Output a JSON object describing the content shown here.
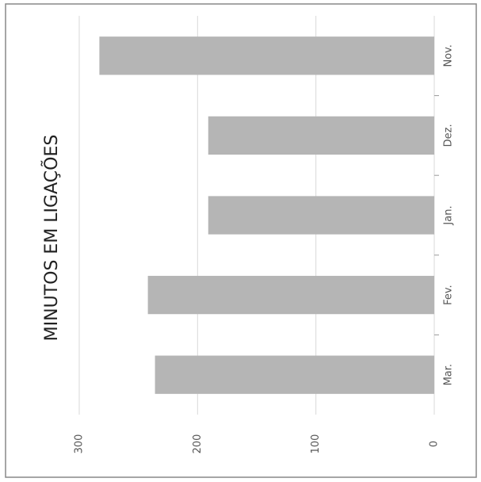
{
  "chart_data": {
    "type": "bar",
    "title": "MINUTOS EM LIGAÇÕES",
    "categories": [
      "Nov.",
      "Dez.",
      "Jan.",
      "Fev.",
      "Mar."
    ],
    "values": [
      283,
      191,
      191,
      242,
      236
    ],
    "color": "#b5b5b5",
    "ylim": [
      0,
      300
    ],
    "yticks": [
      0,
      100,
      200,
      300
    ],
    "grid": true
  }
}
